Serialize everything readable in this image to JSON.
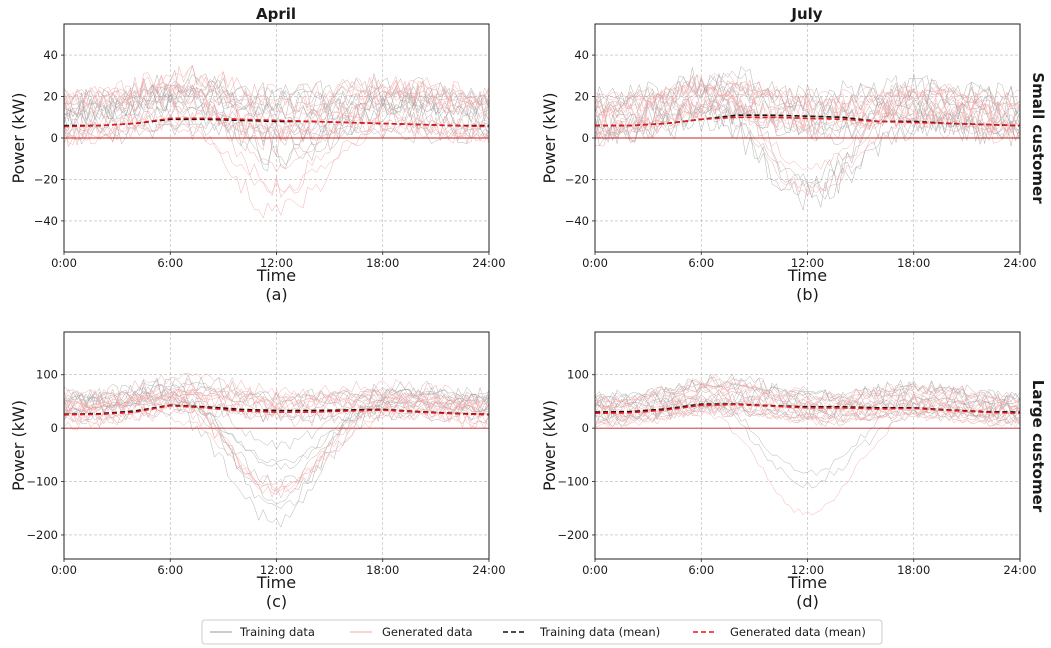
{
  "figure": {
    "col_titles": [
      "April",
      "July"
    ],
    "row_titles": [
      "Small customer",
      "Large customer"
    ]
  },
  "legend": {
    "items": [
      {
        "label": "Training data",
        "color": "#999999",
        "style": "solid"
      },
      {
        "label": "Generated data",
        "color": "#f4a6a6",
        "style": "solid"
      },
      {
        "label": "Training data (mean)",
        "color": "#111111",
        "style": "dashed"
      },
      {
        "label": "Generated data (mean)",
        "color": "#e8161b",
        "style": "dashed"
      }
    ]
  },
  "chart_data": [
    {
      "type": "line",
      "panel": "(a)",
      "title": "April",
      "xlabel": "Time",
      "ylabel": "Power (kW)",
      "xticks": [
        "0:00",
        "6:00",
        "12:00",
        "18:00",
        "24:00"
      ],
      "yticks": [
        -40,
        -20,
        0,
        20,
        40
      ],
      "ylim": [
        -55,
        55
      ],
      "xlim": [
        0,
        24
      ],
      "grid": true,
      "mean_hours": [
        0,
        2,
        4,
        6,
        8,
        10,
        12,
        14,
        16,
        18,
        20,
        22,
        24
      ],
      "series": [
        {
          "name": "Training data (mean)",
          "values": [
            6,
            6,
            7,
            9,
            9,
            8.5,
            8,
            8,
            7.5,
            7,
            6.5,
            6,
            6
          ]
        },
        {
          "name": "Generated data (mean)",
          "values": [
            5.5,
            6,
            7,
            9.5,
            9.5,
            9,
            8.5,
            8,
            7.5,
            7,
            6.5,
            6,
            5.5
          ]
        }
      ]
    },
    {
      "type": "line",
      "panel": "(b)",
      "title": "July",
      "xlabel": "Time",
      "ylabel": "Power (kW)",
      "xticks": [
        "0:00",
        "6:00",
        "12:00",
        "18:00",
        "24:00"
      ],
      "yticks": [
        -40,
        -20,
        0,
        20,
        40
      ],
      "ylim": [
        -55,
        55
      ],
      "xlim": [
        0,
        24
      ],
      "grid": true,
      "mean_hours": [
        0,
        2,
        4,
        6,
        8,
        10,
        12,
        14,
        16,
        18,
        20,
        22,
        24
      ],
      "series": [
        {
          "name": "Training data (mean)",
          "values": [
            6,
            6,
            7,
            9,
            11,
            11,
            10.5,
            10,
            8,
            8,
            7,
            6.5,
            6
          ]
        },
        {
          "name": "Generated data (mean)",
          "values": [
            6,
            6,
            7,
            9,
            10,
            10,
            9.5,
            9,
            8,
            7.5,
            7,
            6.5,
            6
          ]
        }
      ]
    },
    {
      "type": "line",
      "panel": "(c)",
      "xlabel": "Time",
      "ylabel": "Power (kW)",
      "xticks": [
        "0:00",
        "6:00",
        "12:00",
        "18:00",
        "24:00"
      ],
      "yticks": [
        -200,
        -100,
        0,
        100
      ],
      "ylim": [
        -245,
        180
      ],
      "xlim": [
        0,
        24
      ],
      "grid": true,
      "mean_hours": [
        0,
        2,
        4,
        6,
        8,
        10,
        12,
        14,
        16,
        18,
        20,
        22,
        24
      ],
      "series": [
        {
          "name": "Training data (mean)",
          "values": [
            26,
            27,
            32,
            43,
            40,
            35,
            33,
            33,
            34,
            35,
            31,
            28,
            26
          ]
        },
        {
          "name": "Generated data (mean)",
          "values": [
            25,
            26,
            30,
            42,
            38,
            32,
            30,
            30,
            32,
            34,
            30,
            27,
            25
          ]
        }
      ]
    },
    {
      "type": "line",
      "panel": "(d)",
      "xlabel": "Time",
      "ylabel": "Power (kW)",
      "xticks": [
        "0:00",
        "6:00",
        "12:00",
        "18:00",
        "24:00"
      ],
      "yticks": [
        -200,
        -100,
        0,
        100
      ],
      "ylim": [
        -245,
        180
      ],
      "xlim": [
        0,
        24
      ],
      "grid": true,
      "mean_hours": [
        0,
        2,
        4,
        6,
        8,
        10,
        12,
        14,
        16,
        18,
        20,
        22,
        24
      ],
      "series": [
        {
          "name": "Training data (mean)",
          "values": [
            30,
            31,
            36,
            45,
            45,
            42,
            40,
            40,
            38,
            38,
            34,
            31,
            30
          ]
        },
        {
          "name": "Generated data (mean)",
          "values": [
            28,
            29,
            34,
            43,
            44,
            41,
            38,
            38,
            36,
            37,
            33,
            30,
            28
          ]
        }
      ]
    }
  ]
}
